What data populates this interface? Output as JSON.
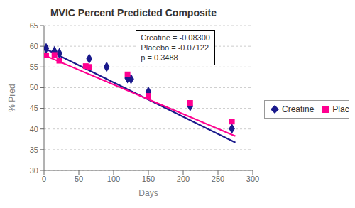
{
  "chart_data": {
    "type": "scatter",
    "title": "MVIC Percent Predicted Composite",
    "xlabel": "Days",
    "ylabel": "% Pred",
    "xlim": [
      0,
      300
    ],
    "ylim": [
      30,
      65
    ],
    "xticks": [
      0,
      50,
      100,
      150,
      200,
      250,
      300
    ],
    "yticks": [
      30,
      35,
      40,
      45,
      50,
      55,
      60,
      65
    ],
    "grid": "y",
    "legend": "right",
    "annotation": "Creatine = -0.08300\nPlacebo = -0.07122\np = 0.3488",
    "series": [
      {
        "name": "Creatine",
        "color": "#1a1a8c",
        "marker": "diamond",
        "x": [
          3,
          15,
          22,
          65,
          90,
          120,
          125,
          150,
          210,
          270
        ],
        "values": [
          59.5,
          58.8,
          58.3,
          57.0,
          55.0,
          52.3,
          52.1,
          49.0,
          45.5,
          40.1
        ],
        "trend_x": [
          0,
          275
        ],
        "trend_values": [
          59.55,
          36.725
        ]
      },
      {
        "name": "Placebo",
        "color": "#ff0090",
        "marker": "square",
        "x": [
          3,
          15,
          22,
          60,
          65,
          120,
          150,
          210,
          270
        ],
        "values": [
          57.8,
          57.9,
          56.5,
          55.2,
          55.0,
          53.2,
          48.0,
          46.3,
          41.8
        ],
        "trend_x": [
          0,
          275
        ],
        "trend_values": [
          57.85,
          38.2645
        ]
      }
    ]
  }
}
